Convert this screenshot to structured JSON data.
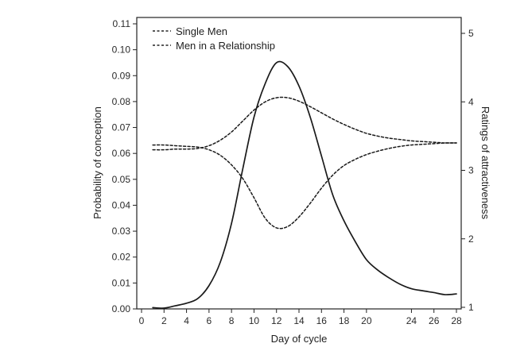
{
  "chart_data": {
    "type": "line",
    "xlabel": "Day of cycle",
    "ylabel_left": "Probability of conception",
    "ylabel_right": "Ratings of attractiveness",
    "x_ticks": [
      "0",
      "2",
      "4",
      "6",
      "8",
      "10",
      "12",
      "14",
      "16",
      "18",
      "20",
      "24",
      "26",
      "28"
    ],
    "xlim": [
      0,
      28
    ],
    "y_left_ticks": [
      "0.00",
      "0.01",
      "0.02",
      "0.03",
      "0.04",
      "0.05",
      "0.06",
      "0.07",
      "0.08",
      "0.09",
      "0.10",
      "0.11"
    ],
    "ylim_left": [
      0,
      0.11
    ],
    "y_right_ticks": [
      "1",
      "2",
      "3",
      "4",
      "5"
    ],
    "ylim_right": [
      1,
      5.2
    ],
    "legend_position": "top-left",
    "grid": false,
    "series": [
      {
        "name": "Single Men",
        "axis": "right",
        "style": "dashed",
        "x": [
          1,
          2,
          3,
          4,
          5,
          6,
          7,
          8,
          9,
          10,
          11,
          12,
          13,
          14,
          15,
          16,
          17,
          18,
          19,
          20,
          21,
          22,
          23,
          24,
          25,
          26,
          27,
          28
        ],
        "y": [
          3.3,
          3.3,
          3.31,
          3.31,
          3.32,
          3.36,
          3.44,
          3.56,
          3.72,
          3.88,
          4.0,
          4.06,
          4.06,
          4.01,
          3.93,
          3.84,
          3.75,
          3.67,
          3.6,
          3.54,
          3.5,
          3.47,
          3.45,
          3.43,
          3.42,
          3.41,
          3.4,
          3.4
        ]
      },
      {
        "name": "Men in a Relationship",
        "axis": "right",
        "style": "dashed",
        "x": [
          1,
          2,
          3,
          4,
          5,
          6,
          7,
          8,
          9,
          10,
          11,
          12,
          13,
          14,
          15,
          16,
          17,
          18,
          19,
          20,
          21,
          22,
          23,
          24,
          25,
          26,
          27,
          28
        ],
        "y": [
          3.37,
          3.37,
          3.36,
          3.35,
          3.34,
          3.3,
          3.22,
          3.08,
          2.88,
          2.6,
          2.3,
          2.16,
          2.18,
          2.32,
          2.52,
          2.74,
          2.93,
          3.07,
          3.16,
          3.23,
          3.28,
          3.32,
          3.35,
          3.37,
          3.38,
          3.39,
          3.4,
          3.4
        ]
      },
      {
        "name": "Probability of conception",
        "axis": "left",
        "style": "solid",
        "x": [
          1,
          2,
          3,
          4,
          5,
          6,
          7,
          8,
          9,
          10,
          11,
          12,
          13,
          14,
          15,
          16,
          17,
          18,
          19,
          20,
          21,
          22,
          23,
          24,
          25,
          26,
          27,
          28
        ],
        "y": [
          0.0005,
          0.0003,
          0.0012,
          0.0022,
          0.004,
          0.009,
          0.018,
          0.033,
          0.054,
          0.074,
          0.087,
          0.095,
          0.0935,
          0.086,
          0.074,
          0.059,
          0.044,
          0.034,
          0.026,
          0.019,
          0.015,
          0.012,
          0.0095,
          0.0078,
          0.007,
          0.0063,
          0.0055,
          0.0058
        ]
      }
    ]
  }
}
